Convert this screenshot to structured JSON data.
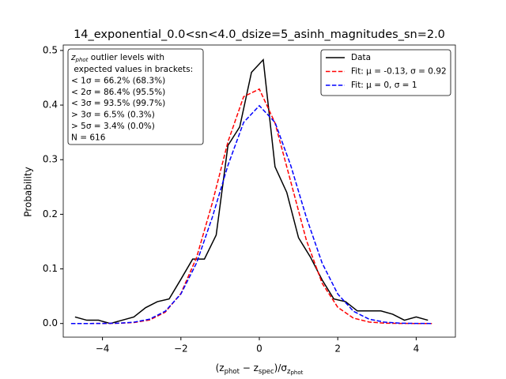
{
  "chart_data": {
    "type": "line",
    "title": "14_exponential_0.0<sn<4.0_dsize=5_asinh_magnitudes_sn=2.0",
    "y_label": "Probability",
    "x_label_parts": [
      {
        "text": "(z",
        "sub": false
      },
      {
        "text": "phot",
        "sub": true
      },
      {
        "text": " − z",
        "sub": false
      },
      {
        "text": "spec",
        "sub": true
      },
      {
        "text": ")/σ",
        "sub": false
      },
      {
        "text": "z",
        "sub": true
      },
      {
        "text": "phot",
        "sub": true
      }
    ],
    "xlim": [
      -5.0,
      5.0
    ],
    "ylim": [
      -0.025,
      0.51
    ],
    "xticks": [
      {
        "value": -4,
        "label": "−4"
      },
      {
        "value": -2,
        "label": "−2"
      },
      0,
      2,
      4
    ],
    "yticks": [
      {
        "value": 0,
        "label": "0.0"
      },
      0.1,
      0.2,
      0.3,
      0.4,
      0.5
    ],
    "grid": false,
    "legend": "upper right",
    "info_box": {
      "symbol": "z",
      "symbol_sub": "phot",
      "first_line_rest": " outlier levels with",
      "lines": [
        " expected values in brackets:",
        "< 1σ = 66.2% (68.3%)",
        "< 2σ = 86.4% (95.5%)",
        "< 3σ = 93.5% (99.7%)",
        "> 3σ = 6.5% (0.3%)",
        "> 5σ = 3.4% (0.0%)",
        "N = 616"
      ]
    },
    "series": [
      {
        "name": "Data",
        "color": "#000000",
        "dash": false,
        "x": [
          -4.7,
          -4.4,
          -4.1,
          -3.8,
          -3.5,
          -3.2,
          -2.9,
          -2.6,
          -2.3,
          -2.0,
          -1.7,
          -1.4,
          -1.1,
          -0.8,
          -0.5,
          -0.2,
          0.1,
          0.4,
          0.7,
          1.0,
          1.3,
          1.6,
          1.9,
          2.2,
          2.5,
          2.8,
          3.1,
          3.4,
          3.7,
          4.0,
          4.3
        ],
        "values": [
          0.012,
          0.006,
          0.006,
          0.0,
          0.006,
          0.012,
          0.029,
          0.04,
          0.045,
          0.081,
          0.118,
          0.118,
          0.162,
          0.326,
          0.36,
          0.46,
          0.483,
          0.287,
          0.24,
          0.157,
          0.122,
          0.08,
          0.045,
          0.04,
          0.023,
          0.023,
          0.023,
          0.017,
          0.006,
          0.012,
          0.006
        ]
      },
      {
        "name": "Fit: μ = -0.13, σ = 0.92",
        "color": "#ff0000",
        "dash": true,
        "x": [
          -4.8,
          -4.4,
          -4.0,
          -3.6,
          -3.2,
          -2.8,
          -2.4,
          -2.0,
          -1.6,
          -1.2,
          -0.8,
          -0.4,
          0.0,
          0.4,
          0.8,
          1.2,
          1.6,
          2.0,
          2.4,
          2.8,
          3.2,
          3.6,
          4.0,
          4.4
        ],
        "values": [
          0.0,
          0.0,
          0.0001,
          0.0004,
          0.0017,
          0.0064,
          0.0207,
          0.0549,
          0.121,
          0.2205,
          0.3327,
          0.4154,
          0.4293,
          0.3672,
          0.2601,
          0.1525,
          0.074,
          0.0297,
          0.0099,
          0.0027,
          0.0006,
          0.0001,
          0.0,
          0.0
        ]
      },
      {
        "name": "Fit: μ = 0, σ = 1",
        "color": "#0000ff",
        "dash": true,
        "x": [
          -4.8,
          -4.4,
          -4.0,
          -3.6,
          -3.2,
          -2.8,
          -2.4,
          -2.0,
          -1.6,
          -1.2,
          -0.8,
          -0.4,
          0.0,
          0.4,
          0.8,
          1.2,
          1.6,
          2.0,
          2.4,
          2.8,
          3.2,
          3.6,
          4.0,
          4.4
        ],
        "values": [
          0.0,
          0.0,
          0.0001,
          0.0006,
          0.0024,
          0.0079,
          0.0224,
          0.054,
          0.1109,
          0.1942,
          0.2897,
          0.3683,
          0.3989,
          0.3683,
          0.2897,
          0.1942,
          0.1109,
          0.054,
          0.0224,
          0.0079,
          0.0024,
          0.0006,
          0.0001,
          0.0
        ]
      }
    ]
  }
}
